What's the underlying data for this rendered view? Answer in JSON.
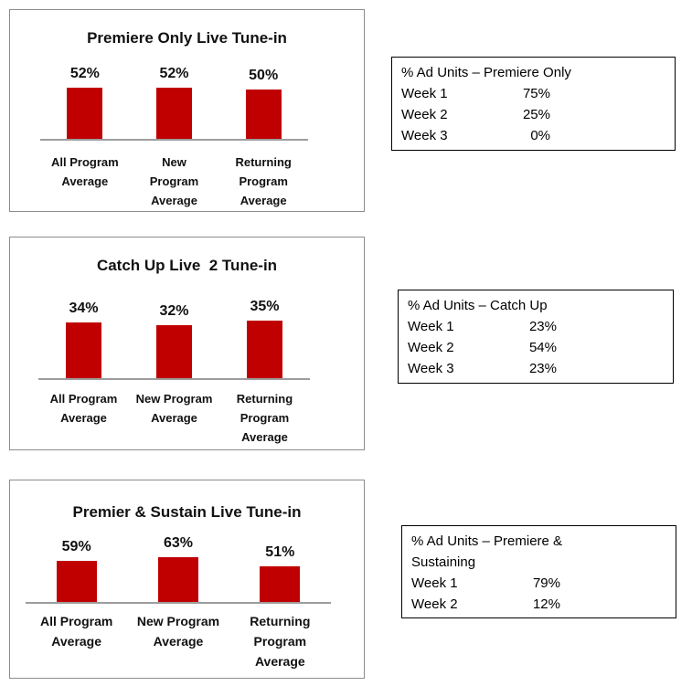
{
  "colors": {
    "bar": "#C00000",
    "axis_line": "#9D9D9D",
    "chart_panel_border": "#8C8C8C",
    "table_border": "#000000",
    "background": "#FFFFFF"
  },
  "chart_data": [
    {
      "type": "bar",
      "title": "Premiere Only Live Tune-in",
      "categories": [
        "All Program Average",
        "New Program Average",
        "Returning Program Average"
      ],
      "category_lines": [
        "All Program\nAverage",
        "New\nProgram\nAverage",
        "Returning\nProgram\nAverage"
      ],
      "values": [
        52,
        52,
        50
      ],
      "value_labels": [
        "52%",
        "52%",
        "50%"
      ],
      "xlabel": "",
      "ylabel": "",
      "grid": false,
      "legend": false,
      "bar_color": "#C00000"
    },
    {
      "type": "bar",
      "title": "Catch Up Live  2 Tune-in",
      "categories": [
        "All Program Average",
        "New Program Average",
        "Returning Program Average"
      ],
      "category_lines": [
        "All Program\nAverage",
        "New Program\nAverage",
        "Returning\nProgram\nAverage"
      ],
      "values": [
        34,
        32,
        35
      ],
      "value_labels": [
        "34%",
        "32%",
        "35%"
      ],
      "xlabel": "",
      "ylabel": "",
      "grid": false,
      "legend": false,
      "bar_color": "#C00000"
    },
    {
      "type": "bar",
      "title": "Premier & Sustain Live Tune-in",
      "categories": [
        "All Program Average",
        "New Program Average",
        "Returning Program Average"
      ],
      "category_lines": [
        "All Program\nAverage",
        "New Program\nAverage",
        "Returning\nProgram\nAverage"
      ],
      "values": [
        59,
        63,
        51
      ],
      "value_labels": [
        "59%",
        "63%",
        "51%"
      ],
      "xlabel": "",
      "ylabel": "",
      "grid": false,
      "legend": false,
      "bar_color": "#C00000"
    },
    {
      "type": "table",
      "title": "% Ad Units – Premiere Only",
      "rows": [
        [
          "Week 1",
          "75%"
        ],
        [
          "Week 2",
          "25%"
        ],
        [
          "Week 3",
          "0%"
        ]
      ]
    },
    {
      "type": "table",
      "title": "% Ad Units – Catch Up",
      "rows": [
        [
          "Week 1",
          "23%"
        ],
        [
          "Week 2",
          "54%"
        ],
        [
          "Week 3",
          "23%"
        ]
      ]
    },
    {
      "type": "table",
      "title": "% Ad Units – Premiere &\nSustaining",
      "rows": [
        [
          "Week 1",
          "79%"
        ],
        [
          "Week 2",
          "12%"
        ]
      ]
    }
  ]
}
